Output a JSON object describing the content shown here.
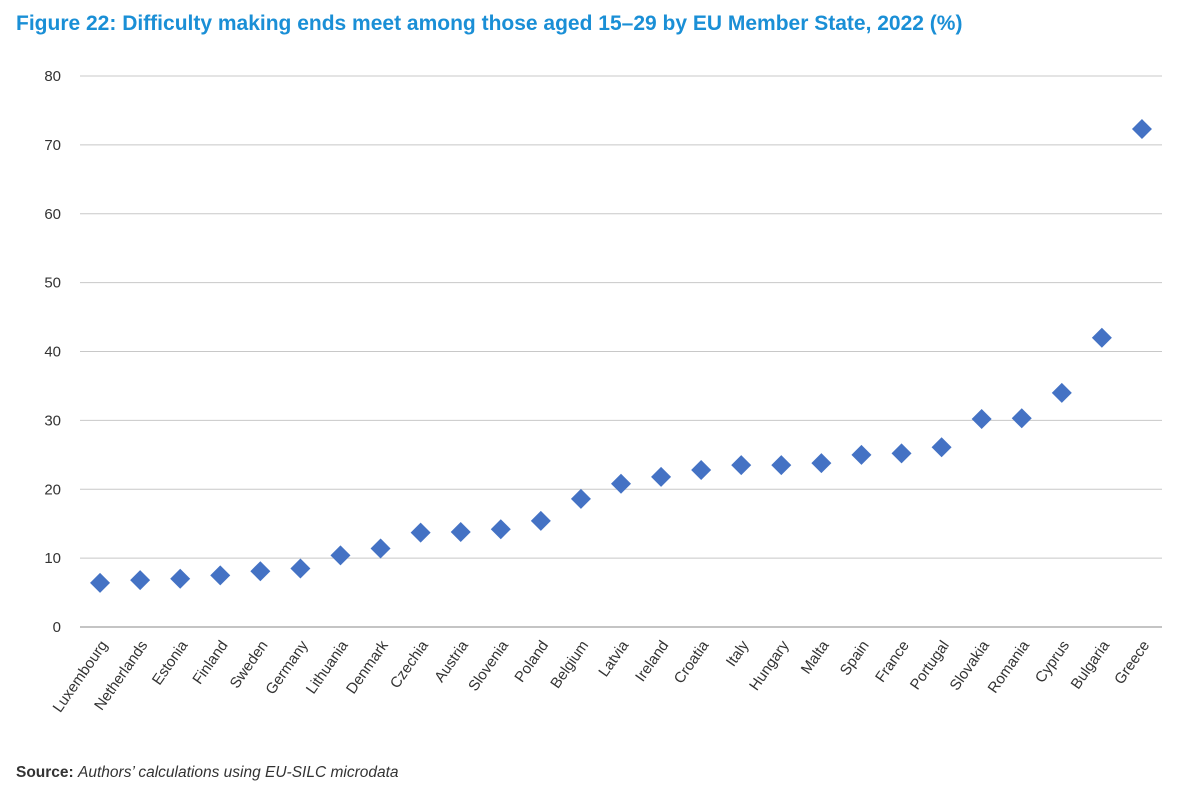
{
  "title": "Figure 22: Difficulty making ends meet among those aged 15–29 by EU Member State, 2022 (%)",
  "source": {
    "label": "Source:",
    "text": "Authors’ calculations using EU-SILC microdata"
  },
  "colors": {
    "title": "#1a8fd6",
    "marker": "#4472c4",
    "grid": "#c8c8c8",
    "axis": "#888888",
    "text": "#333333"
  },
  "chart_data": {
    "type": "scatter",
    "marker": "diamond",
    "title": "Figure 22: Difficulty making ends meet among those aged 15–29 by EU Member State, 2022 (%)",
    "xlabel": "",
    "ylabel": "",
    "ylim": [
      0,
      80
    ],
    "yticks": [
      0,
      10,
      20,
      30,
      40,
      50,
      60,
      70,
      80
    ],
    "grid": true,
    "legend": "none",
    "categories": [
      "Luxembourg",
      "Netherlands",
      "Estonia",
      "Finland",
      "Sweden",
      "Germany",
      "Lithuania",
      "Denmark",
      "Czechia",
      "Austria",
      "Slovenia",
      "Poland",
      "Belgium",
      "Latvia",
      "Ireland",
      "Croatia",
      "Italy",
      "Hungary",
      "Malta",
      "Spain",
      "France",
      "Portugal",
      "Slovakia",
      "Romania",
      "Cyprus",
      "Bulgaria",
      "Greece"
    ],
    "values": [
      6.4,
      6.8,
      7.0,
      7.5,
      8.1,
      8.5,
      10.4,
      11.4,
      13.7,
      13.8,
      14.2,
      15.4,
      18.6,
      20.8,
      21.8,
      22.8,
      23.5,
      23.5,
      23.8,
      25.0,
      25.2,
      26.1,
      30.2,
      30.3,
      34.0,
      42.0,
      72.3
    ]
  }
}
